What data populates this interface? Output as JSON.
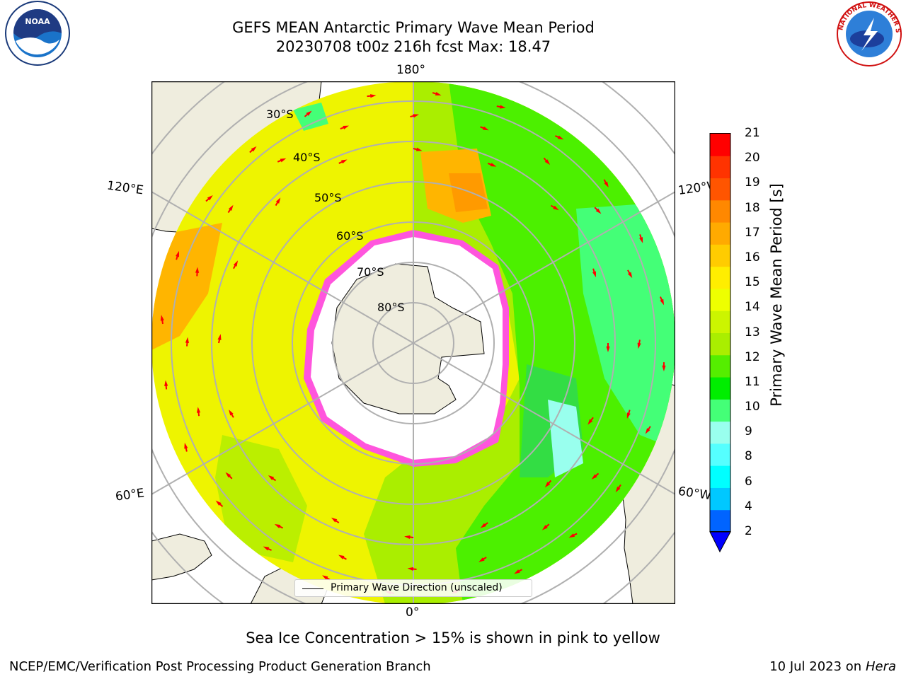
{
  "title": {
    "line1": "GEFS MEAN Antarctic Primary Wave Mean Period",
    "line2": "20230708 t00z 216h fcst   Max: 18.47"
  },
  "map": {
    "longitude_labels": {
      "top": "180°",
      "bottom": "0°",
      "upper_left": "120°E",
      "upper_right": "120°W",
      "lower_left": "60°E",
      "lower_right": "60°W"
    },
    "latitude_labels": [
      "30°S",
      "40°S",
      "50°S",
      "60°S",
      "70°S",
      "80°S"
    ],
    "legend": "Primary Wave Direction (unscaled)",
    "colors": {
      "land": "#efedde",
      "ocean_yellow": "#eef400",
      "ocean_green": "#4cf000",
      "ocean_orange": "#ffb500",
      "sea_ice_pink": "#ff55dd",
      "arrows": "#ff0000"
    }
  },
  "colorbar": {
    "label": "Primary Wave Mean Period [s]",
    "ticks": [
      "2",
      "4",
      "6",
      "8",
      "9",
      "10",
      "11",
      "12",
      "13",
      "14",
      "15",
      "16",
      "17",
      "18",
      "19",
      "20",
      "21"
    ],
    "colors": [
      "#0064ff",
      "#00c8ff",
      "#00ffff",
      "#55ffff",
      "#99ffee",
      "#44ff77",
      "#00ee00",
      "#55ee00",
      "#aaee00",
      "#ccf500",
      "#eeff00",
      "#ffee00",
      "#ffcc00",
      "#ffaa00",
      "#ff8800",
      "#ff5500",
      "#ff3300",
      "#ff0000"
    ],
    "extend_color": "#0000ff"
  },
  "note": "Sea Ice Concentration > 15% is shown in pink to yellow",
  "footer": {
    "left": "NCEP/EMC/Verification Post Processing Product Generation Branch",
    "date": "10 Jul 2023 on ",
    "host": "Hera"
  },
  "logos": {
    "noaa": "NOAA",
    "nws": "NATIONAL WEATHER SERVICE"
  }
}
